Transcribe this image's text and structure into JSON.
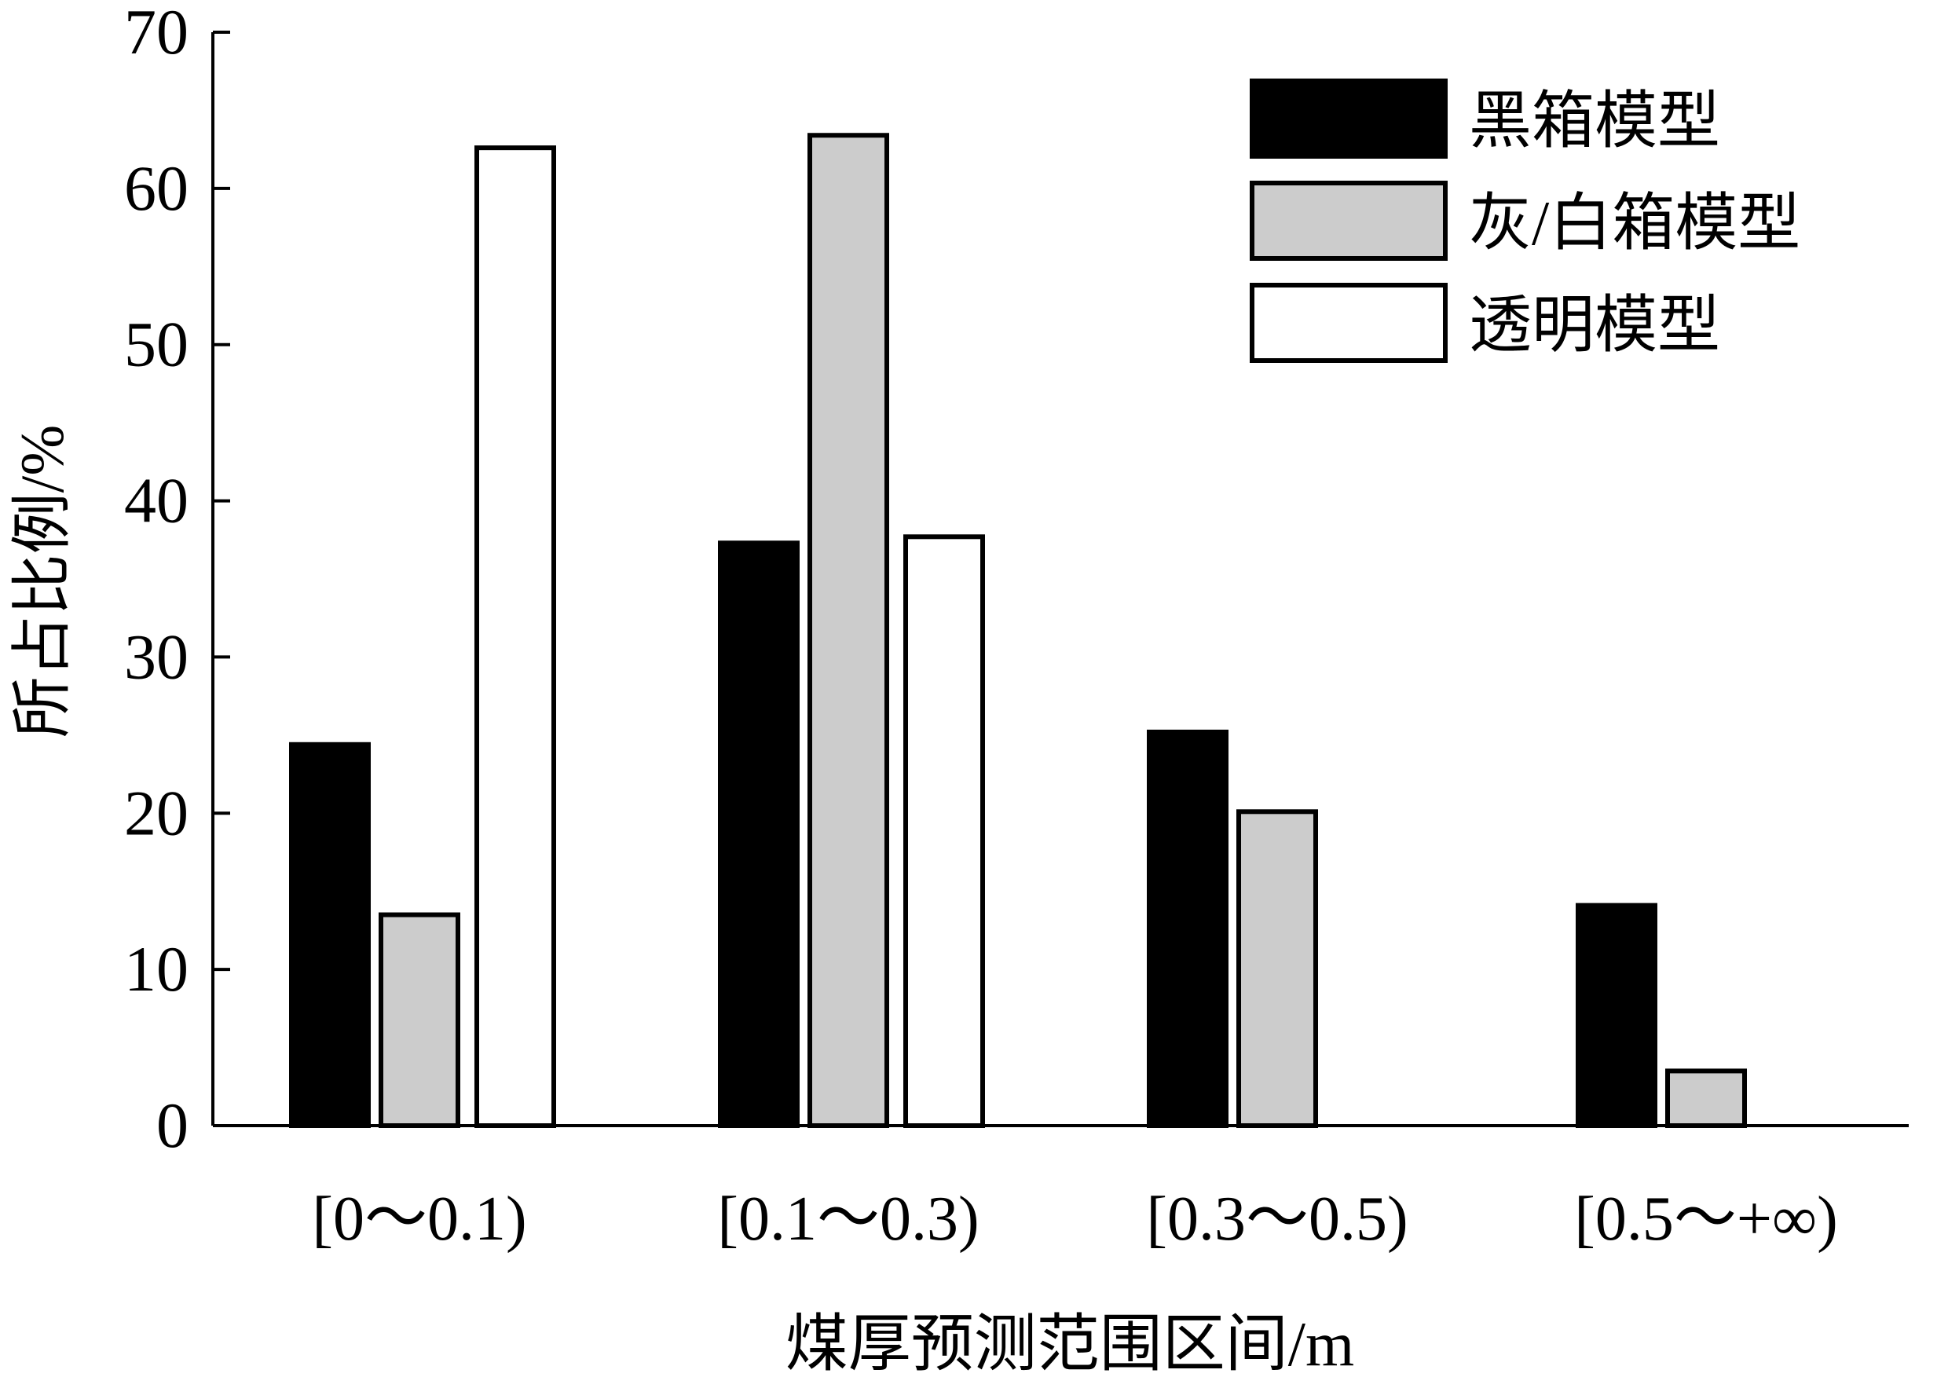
{
  "chart_data": {
    "type": "bar",
    "title": "",
    "xlabel": "煤厚预测范围区间/m",
    "ylabel": "所占比例/%",
    "ylim": [
      0,
      70
    ],
    "yticks": [
      "0",
      "10",
      "20",
      "30",
      "40",
      "50",
      "60",
      "70"
    ],
    "categories": [
      "[0～0.1)",
      "[0.1～0.3)",
      "[0.3～0.5)",
      "[0.5～+∞)"
    ],
    "series": [
      {
        "name": "黑箱模型",
        "color": "#000000",
        "values": [
          24.4,
          37.3,
          25.2,
          14.1
        ]
      },
      {
        "name": "灰/白箱模型",
        "color": "#cccccc",
        "values": [
          13.5,
          63.4,
          20.1,
          3.5
        ]
      },
      {
        "name": "透明模型",
        "color": "#ffffff",
        "values": [
          62.6,
          37.7,
          null,
          null
        ]
      }
    ],
    "grid": false,
    "legend_position": "top-right"
  }
}
